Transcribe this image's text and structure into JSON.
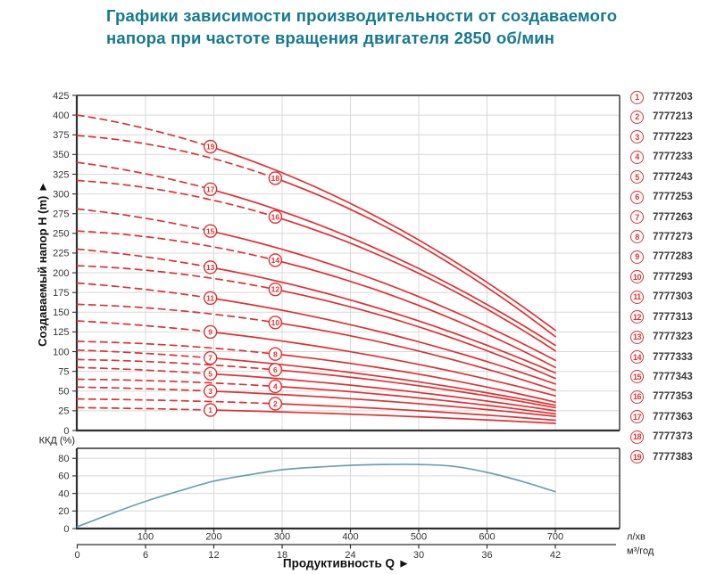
{
  "title": {
    "line1": "Графики зависимости производительности от создаваемого",
    "line2": "напора при частоте вращения двигателя 2850 об/мин"
  },
  "colors": {
    "title_teal": "#147a90",
    "curve_red": "#e03133",
    "efficiency_blue": "#68a1b2",
    "grid": "#d8d8d8",
    "axis": "#2f2f2f",
    "tick_text": "#333333",
    "legend_code_text": "#3a3a3a"
  },
  "legend": {
    "items": [
      {
        "num": "1",
        "code": "7777203"
      },
      {
        "num": "2",
        "code": "7777213"
      },
      {
        "num": "3",
        "code": "7777223"
      },
      {
        "num": "4",
        "code": "7777233"
      },
      {
        "num": "5",
        "code": "7777243"
      },
      {
        "num": "6",
        "code": "7777253"
      },
      {
        "num": "7",
        "code": "7777263"
      },
      {
        "num": "8",
        "code": "7777273"
      },
      {
        "num": "9",
        "code": "7777283"
      },
      {
        "num": "10",
        "code": "7777293"
      },
      {
        "num": "11",
        "code": "7777303"
      },
      {
        "num": "12",
        "code": "7777313"
      },
      {
        "num": "13",
        "code": "7777323"
      },
      {
        "num": "14",
        "code": "7777333"
      },
      {
        "num": "15",
        "code": "7777343"
      },
      {
        "num": "16",
        "code": "7777353"
      },
      {
        "num": "17",
        "code": "7777363"
      },
      {
        "num": "18",
        "code": "7777373"
      },
      {
        "num": "19",
        "code": "7777383"
      }
    ]
  },
  "chart_data": [
    {
      "id": "head_vs_flow",
      "type": "line",
      "title": "",
      "xlabel": "Продуктивность Q",
      "ylabel": "Создаваемый напор H (m)",
      "x_units": {
        "primary": "л/хв",
        "secondary": "м³/год"
      },
      "xlim": [
        0,
        795
      ],
      "ylim": [
        0,
        425
      ],
      "grid": true,
      "legend_position": "right",
      "x_ticks_primary": [
        100,
        200,
        300,
        400,
        500,
        600,
        700
      ],
      "x_ticks_secondary": [
        0,
        6,
        12,
        18,
        24,
        30,
        36,
        42
      ],
      "y_ticks": [
        0,
        25,
        50,
        75,
        100,
        125,
        150,
        175,
        200,
        225,
        250,
        275,
        300,
        325,
        350,
        375,
        400,
        425
      ],
      "curves_end_at_q": 700,
      "series_note": "points are [Q л/хв, H m] anchors: shutoff head, head at numbered marker, head at Q=700; dashed line segment from Q=0 to marker",
      "series": [
        {
          "num": 1,
          "code": "7777203",
          "marker_q": 195,
          "points": [
            [
              0,
              29
            ],
            [
              195,
              26
            ],
            [
              700,
              9
            ]
          ]
        },
        {
          "num": 2,
          "code": "7777213",
          "marker_q": 290,
          "points": [
            [
              0,
              40
            ],
            [
              290,
              34
            ],
            [
              700,
              13
            ]
          ]
        },
        {
          "num": 3,
          "code": "7777223",
          "marker_q": 195,
          "points": [
            [
              0,
              55
            ],
            [
              195,
              50
            ],
            [
              700,
              18
            ]
          ]
        },
        {
          "num": 4,
          "code": "7777233",
          "marker_q": 290,
          "points": [
            [
              0,
              65
            ],
            [
              290,
              56
            ],
            [
              700,
              21
            ]
          ]
        },
        {
          "num": 5,
          "code": "7777243",
          "marker_q": 195,
          "points": [
            [
              0,
              80
            ],
            [
              195,
              72
            ],
            [
              700,
              25
            ]
          ]
        },
        {
          "num": 6,
          "code": "7777253",
          "marker_q": 290,
          "points": [
            [
              0,
              90
            ],
            [
              290,
              77
            ],
            [
              700,
              29
            ]
          ]
        },
        {
          "num": 7,
          "code": "7777263",
          "marker_q": 195,
          "points": [
            [
              0,
              102
            ],
            [
              195,
              92
            ],
            [
              700,
              32
            ]
          ]
        },
        {
          "num": 8,
          "code": "7777273",
          "marker_q": 290,
          "points": [
            [
              0,
              113
            ],
            [
              290,
              97
            ],
            [
              700,
              36
            ]
          ]
        },
        {
          "num": 9,
          "code": "7777283",
          "marker_q": 195,
          "points": [
            [
              0,
              139
            ],
            [
              195,
              125
            ],
            [
              700,
              44
            ]
          ]
        },
        {
          "num": 10,
          "code": "7777293",
          "marker_q": 290,
          "points": [
            [
              0,
              160
            ],
            [
              290,
              137
            ],
            [
              700,
              51
            ]
          ]
        },
        {
          "num": 11,
          "code": "7777303",
          "marker_q": 195,
          "points": [
            [
              0,
              187
            ],
            [
              195,
              168
            ],
            [
              700,
              59
            ]
          ]
        },
        {
          "num": 12,
          "code": "7777313",
          "marker_q": 290,
          "points": [
            [
              0,
              209
            ],
            [
              290,
              179
            ],
            [
              700,
              66
            ]
          ]
        },
        {
          "num": 13,
          "code": "7777323",
          "marker_q": 195,
          "points": [
            [
              0,
              230
            ],
            [
              195,
              207
            ],
            [
              700,
              73
            ]
          ]
        },
        {
          "num": 14,
          "code": "7777333",
          "marker_q": 290,
          "points": [
            [
              0,
              253
            ],
            [
              290,
              216
            ],
            [
              700,
              80
            ]
          ]
        },
        {
          "num": 15,
          "code": "7777343",
          "marker_q": 195,
          "points": [
            [
              0,
              281
            ],
            [
              195,
              253
            ],
            [
              700,
              89
            ]
          ]
        },
        {
          "num": 16,
          "code": "7777353",
          "marker_q": 290,
          "points": [
            [
              0,
              317
            ],
            [
              290,
              271
            ],
            [
              700,
              101
            ]
          ]
        },
        {
          "num": 17,
          "code": "7777363",
          "marker_q": 195,
          "points": [
            [
              0,
              340
            ],
            [
              195,
              306
            ],
            [
              700,
              108
            ]
          ]
        },
        {
          "num": 18,
          "code": "7777373",
          "marker_q": 290,
          "points": [
            [
              0,
              374
            ],
            [
              290,
              320
            ],
            [
              700,
              119
            ]
          ]
        },
        {
          "num": 19,
          "code": "7777383",
          "marker_q": 195,
          "points": [
            [
              0,
              400
            ],
            [
              195,
              360
            ],
            [
              700,
              127
            ]
          ]
        }
      ]
    },
    {
      "id": "efficiency",
      "type": "line",
      "name": "ККД",
      "ylabel": "ККД (%)",
      "ylim": [
        0,
        91
      ],
      "grid": true,
      "y_ticks": [
        0,
        20,
        40,
        60,
        80
      ],
      "points": [
        [
          0,
          2
        ],
        [
          50,
          17
        ],
        [
          100,
          31
        ],
        [
          150,
          43
        ],
        [
          200,
          54
        ],
        [
          250,
          61
        ],
        [
          300,
          67
        ],
        [
          350,
          70
        ],
        [
          400,
          72
        ],
        [
          450,
          73
        ],
        [
          500,
          73
        ],
        [
          550,
          71
        ],
        [
          600,
          64
        ],
        [
          650,
          54
        ],
        [
          700,
          42
        ]
      ]
    }
  ]
}
